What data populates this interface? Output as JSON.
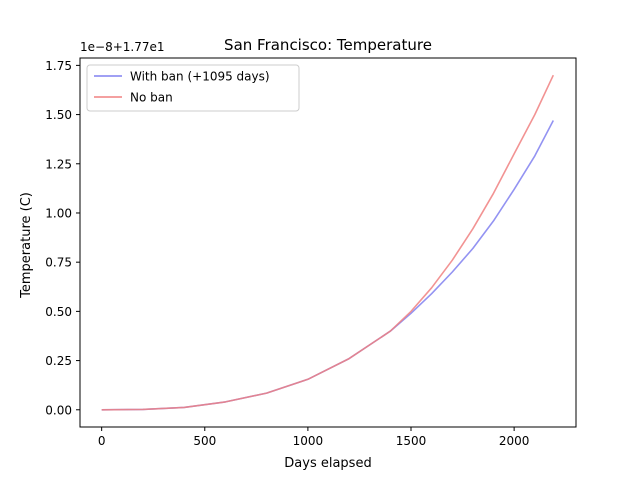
{
  "chart_data": {
    "type": "line",
    "title": "San Francisco: Temperature",
    "xlabel": "Days elapsed",
    "ylabel": "Temperature (C)",
    "offset_label": "1e−8+1.77e1",
    "xlim": [
      -105,
      2300
    ],
    "ylim": [
      -0.0875,
      1.7875
    ],
    "xticks": [
      0,
      500,
      1000,
      1500,
      2000
    ],
    "xtick_labels": [
      "0",
      "500",
      "1000",
      "1500",
      "2000"
    ],
    "yticks": [
      0.0,
      0.25,
      0.5,
      0.75,
      1.0,
      1.25,
      1.5,
      1.75
    ],
    "ytick_labels": [
      "0.00",
      "0.25",
      "0.50",
      "0.75",
      "1.00",
      "1.25",
      "1.50",
      "1.75"
    ],
    "grid": false,
    "legend_position": "upper-left",
    "series": [
      {
        "name": "With ban (+1095 days)",
        "color": "#8080f0",
        "x": [
          0,
          200,
          400,
          600,
          800,
          1000,
          1200,
          1400,
          1500,
          1600,
          1700,
          1800,
          1900,
          2000,
          2100,
          2190
        ],
        "y": [
          0.0,
          0.002,
          0.012,
          0.04,
          0.085,
          0.155,
          0.26,
          0.4,
          0.49,
          0.59,
          0.7,
          0.82,
          0.96,
          1.12,
          1.29,
          1.47
        ]
      },
      {
        "name": "No ban",
        "color": "#f08080",
        "x": [
          0,
          200,
          400,
          600,
          800,
          1000,
          1200,
          1400,
          1500,
          1600,
          1700,
          1800,
          1900,
          2000,
          2100,
          2190
        ],
        "y": [
          0.0,
          0.002,
          0.012,
          0.04,
          0.085,
          0.155,
          0.26,
          0.4,
          0.5,
          0.62,
          0.76,
          0.92,
          1.1,
          1.3,
          1.5,
          1.7
        ]
      }
    ]
  }
}
